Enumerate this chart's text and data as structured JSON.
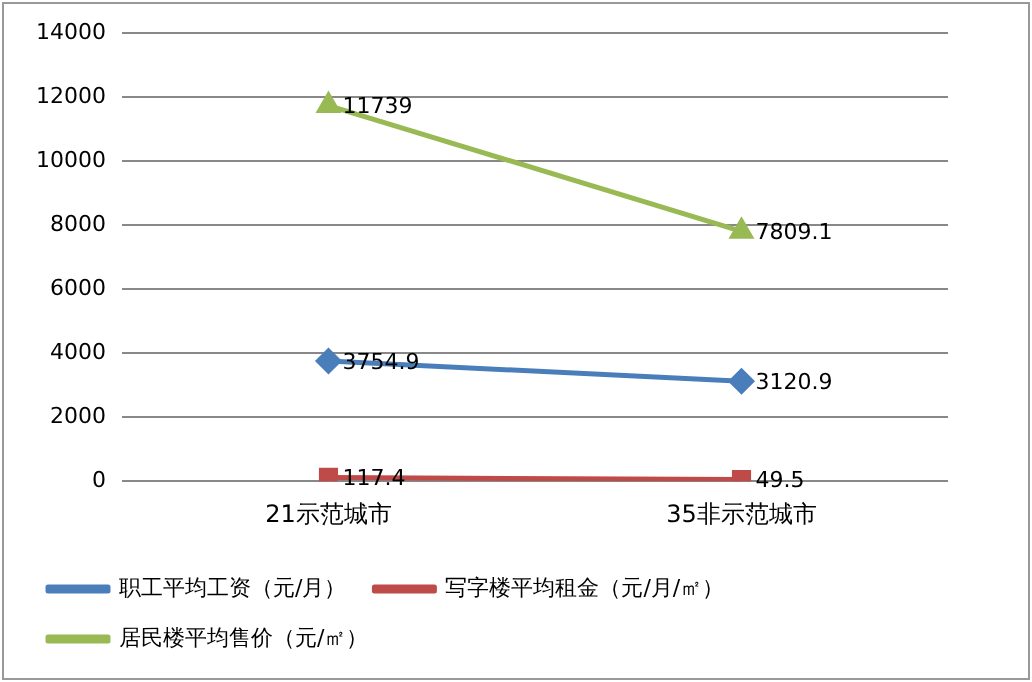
{
  "chart_data": {
    "type": "line",
    "categories": [
      "21示范城市",
      "35非示范城市"
    ],
    "series": [
      {
        "name": "职工平均工资（元/月）",
        "color": "#4a7ebb",
        "marker": "diamond",
        "values": [
          3754.9,
          3120.9
        ]
      },
      {
        "name": "写字楼平均租金（元/月/㎡）",
        "color": "#be4b48",
        "marker": "square",
        "values": [
          117.4,
          49.5
        ]
      },
      {
        "name": "居民楼平均售价（元/㎡）",
        "color": "#98b954",
        "marker": "triangle",
        "values": [
          11739,
          7809.1
        ]
      }
    ],
    "ylim": [
      0,
      14000
    ],
    "yticks": [
      0,
      2000,
      4000,
      6000,
      8000,
      10000,
      12000,
      14000
    ],
    "grid": "y",
    "legend": "bottom",
    "data_labels": true,
    "line_style": "solid"
  }
}
